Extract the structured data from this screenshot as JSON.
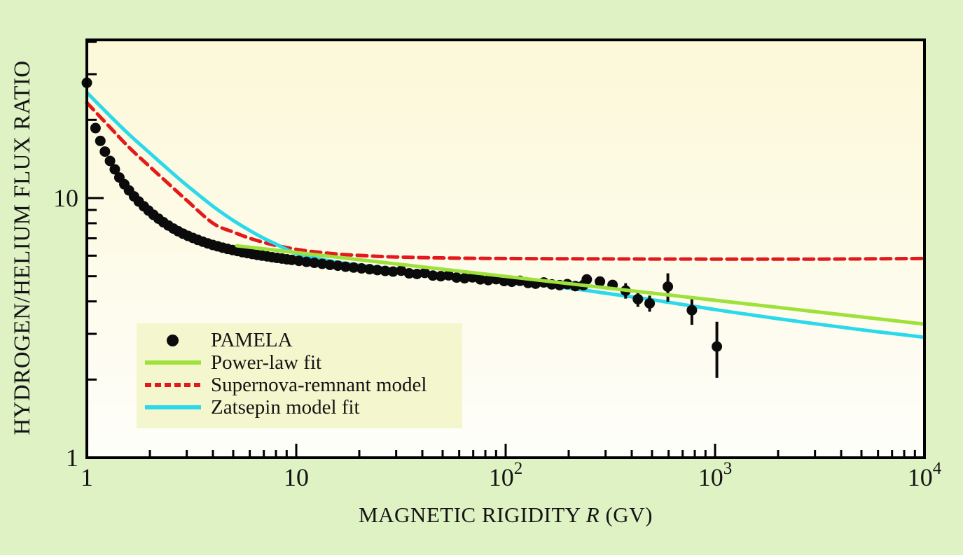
{
  "figure": {
    "y_label": "HYDROGEN/HELIUM FLUX RATIO",
    "x_label_pre": "MAGNETIC RIGIDITY ",
    "x_label_var": "R",
    "x_label_post": " (GV)"
  },
  "colors": {
    "page_bg": "#dff2c4",
    "plot_bg_top": "#fcf8d8",
    "plot_bg_mid": "#fdfbea",
    "plot_bg_bottom": "#fefefa",
    "legend_bg": "#f4f7cd",
    "frame": "#000000",
    "text": "#141414",
    "pamela": "#0b0b0b",
    "power_law": "#9fe13c",
    "supernova": "#e3191c",
    "zatsepin": "#2bd9ea"
  },
  "legend": {
    "position": "inside lower-left",
    "items": [
      {
        "label": "PAMELA",
        "symbol": "dot",
        "color": "pamela"
      },
      {
        "label": "Power-law fit",
        "symbol": "line",
        "color": "power_law"
      },
      {
        "label": "Supernova-remnant model",
        "symbol": "dash",
        "color": "supernova"
      },
      {
        "label": "Zatsepin model fit",
        "symbol": "line",
        "color": "zatsepin"
      }
    ]
  },
  "chart_data": {
    "type": "scatter",
    "title": "",
    "xlabel": "MAGNETIC RIGIDITY R (GV)",
    "ylabel": "HYDROGEN/HELIUM FLUX RATIO",
    "x_scale": "log",
    "y_scale": "log",
    "xlim": [
      1,
      10000
    ],
    "ylim": [
      1,
      40.7
    ],
    "grid": false,
    "x_axis": {
      "ticks": [
        {
          "v": 1,
          "base": "1",
          "exp": null
        },
        {
          "v": 10,
          "base": "10",
          "exp": null
        },
        {
          "v": 100,
          "base": "10",
          "exp": "2"
        },
        {
          "v": 1000,
          "base": "10",
          "exp": "3"
        },
        {
          "v": 10000,
          "base": "10",
          "exp": "4"
        }
      ]
    },
    "y_axis": {
      "ticks": [
        {
          "v": 1,
          "base": "1",
          "exp": null
        },
        {
          "v": 10,
          "base": "10",
          "exp": null
        }
      ]
    },
    "series": [
      {
        "name": "Supernova-remnant model",
        "type": "line",
        "style": "dashed",
        "color": "supernova",
        "points": [
          [
            1,
            23.3
          ],
          [
            1.3,
            18.6
          ],
          [
            1.6,
            15.6
          ],
          [
            2,
            13.2
          ],
          [
            2.5,
            11.2
          ],
          [
            3,
            9.8
          ],
          [
            4,
            8.0
          ],
          [
            5,
            7.4
          ],
          [
            6,
            7.0
          ],
          [
            7,
            6.75
          ],
          [
            8,
            6.57
          ],
          [
            10,
            6.35
          ],
          [
            12,
            6.22
          ],
          [
            16,
            6.08
          ],
          [
            22,
            5.99
          ],
          [
            30,
            5.93
          ],
          [
            50,
            5.88
          ],
          [
            100,
            5.85
          ],
          [
            300,
            5.83
          ],
          [
            1000,
            5.82
          ],
          [
            3000,
            5.82
          ],
          [
            10000,
            5.85
          ]
        ]
      },
      {
        "name": "Zatsepin model fit",
        "type": "line",
        "style": "solid",
        "color": "zatsepin",
        "points": [
          [
            1,
            25.5
          ],
          [
            1.3,
            20.6
          ],
          [
            1.6,
            17.5
          ],
          [
            2,
            14.9
          ],
          [
            2.5,
            12.7
          ],
          [
            3,
            11.2
          ],
          [
            4,
            9.3
          ],
          [
            5,
            8.2
          ],
          [
            6,
            7.5
          ],
          [
            7,
            7.0
          ],
          [
            8,
            6.65
          ],
          [
            10,
            6.1
          ],
          [
            12,
            5.9
          ],
          [
            16,
            5.65
          ],
          [
            22,
            5.46
          ],
          [
            30,
            5.31
          ],
          [
            50,
            5.07
          ],
          [
            80,
            4.88
          ],
          [
            120,
            4.72
          ],
          [
            200,
            4.5
          ],
          [
            320,
            4.27
          ],
          [
            500,
            4.06
          ],
          [
            1000,
            3.72
          ],
          [
            2000,
            3.43
          ],
          [
            5000,
            3.11
          ],
          [
            10000,
            2.91
          ]
        ]
      },
      {
        "name": "PAMELA",
        "type": "scatter",
        "color": "pamela",
        "marker_radius": 7.5,
        "points": [
          [
            1.0,
            27.8
          ],
          [
            1.1,
            18.6
          ],
          [
            1.16,
            16.6
          ],
          [
            1.22,
            15.1
          ],
          [
            1.29,
            13.9
          ],
          [
            1.36,
            12.9
          ],
          [
            1.43,
            12.0
          ],
          [
            1.51,
            11.3
          ],
          [
            1.59,
            10.7
          ],
          [
            1.68,
            10.15
          ],
          [
            1.77,
            9.7
          ],
          [
            1.87,
            9.3
          ],
          [
            1.97,
            8.95
          ],
          [
            2.08,
            8.62
          ],
          [
            2.2,
            8.33
          ],
          [
            2.32,
            8.07
          ],
          [
            2.45,
            7.84
          ],
          [
            2.59,
            7.63
          ],
          [
            2.73,
            7.45
          ],
          [
            2.88,
            7.29
          ],
          [
            3.04,
            7.15
          ],
          [
            3.21,
            7.02
          ],
          [
            3.39,
            6.9
          ],
          [
            3.58,
            6.79
          ],
          [
            3.78,
            6.69
          ],
          [
            3.99,
            6.6
          ],
          [
            4.21,
            6.52
          ],
          [
            4.45,
            6.44
          ],
          [
            4.7,
            6.37
          ],
          [
            4.96,
            6.31
          ],
          [
            5.24,
            6.25
          ],
          [
            5.53,
            6.19
          ],
          [
            5.84,
            6.14
          ],
          [
            6.17,
            6.09
          ],
          [
            6.51,
            6.04
          ],
          [
            6.87,
            6.0
          ],
          [
            7.26,
            5.96
          ],
          [
            7.66,
            5.92
          ],
          [
            8.09,
            5.88
          ],
          [
            8.54,
            5.85
          ],
          [
            9.02,
            5.81
          ],
          [
            9.52,
            5.78
          ],
          [
            10.3,
            5.73
          ],
          [
            11.2,
            5.68
          ],
          [
            12.2,
            5.63
          ],
          [
            13.3,
            5.58
          ],
          [
            14.5,
            5.53
          ],
          [
            15.8,
            5.49
          ],
          [
            17.2,
            5.44
          ],
          [
            18.8,
            5.4
          ],
          [
            20.5,
            5.36
          ],
          [
            22.4,
            5.32
          ],
          [
            24.4,
            5.28
          ],
          [
            26.6,
            5.24
          ],
          [
            29.0,
            5.21
          ],
          [
            31.7,
            5.25
          ],
          [
            34.6,
            5.13
          ],
          [
            37.7,
            5.1
          ],
          [
            41.1,
            5.15
          ],
          [
            44.9,
            5.03
          ],
          [
            49.0,
            5.0
          ],
          [
            53.4,
            5.04
          ],
          [
            58.3,
            4.94
          ],
          [
            63.6,
            4.91
          ],
          [
            69.4,
            4.95
          ],
          [
            75.7,
            4.86
          ],
          [
            82.6,
            4.83
          ],
          [
            90.1,
            4.87
          ],
          [
            98.3,
            4.79
          ],
          [
            107,
            4.76
          ],
          [
            117,
            4.8
          ],
          [
            128,
            4.71
          ],
          [
            139,
            4.68
          ],
          [
            152,
            4.73
          ],
          [
            166,
            4.65
          ],
          [
            181,
            4.62
          ],
          [
            197,
            4.66
          ],
          [
            215,
            4.58
          ],
          [
            235,
            4.62
          ],
          [
            244,
            4.86
          ],
          [
            282,
            4.77
          ],
          [
            324,
            4.63
          ],
          [
            374,
            4.4
          ],
          [
            428,
            4.08
          ],
          [
            487,
            3.93
          ],
          [
            595,
            4.56
          ],
          [
            775,
            3.7
          ],
          [
            1020,
            2.68
          ]
        ],
        "error_bars": [
          [
            374,
            4.1,
            4.7
          ],
          [
            428,
            3.81,
            4.35
          ],
          [
            487,
            3.65,
            4.21
          ],
          [
            595,
            3.99,
            5.13
          ],
          [
            775,
            3.25,
            4.15
          ],
          [
            1020,
            2.03,
            3.34
          ]
        ]
      },
      {
        "name": "Power-law fit",
        "type": "line",
        "style": "solid",
        "color": "power_law",
        "points": [
          [
            5.2,
            6.55
          ],
          [
            10000,
            3.27
          ]
        ]
      }
    ]
  }
}
